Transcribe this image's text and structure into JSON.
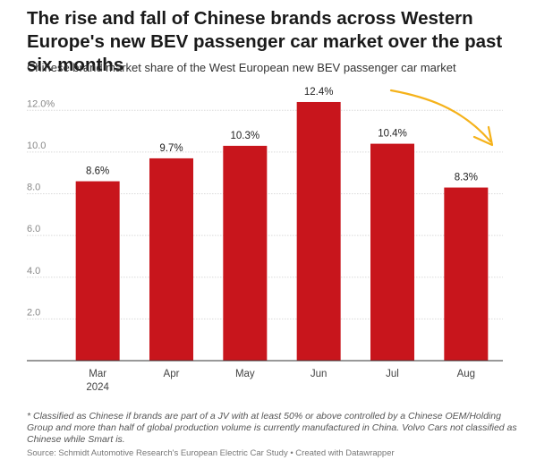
{
  "title": "The rise and fall of Chinese brands across Western Europe's new BEV passenger car market over the past six months",
  "subtitle": "Chinese brand market share of the West European new BEV passenger car market",
  "footnote": "* Classified as Chinese if brands are part of a JV with at least 50% or above controlled by a Chinese OEM/Holding Group and more than half of global production volume is currently manufactured in China. Volvo Cars not classified as Chinese while Smart is.",
  "source": "Source: Schmidt Automotive Research's European Electric Car Study • Created with Datawrapper",
  "colors": {
    "bar": "#c8151c",
    "arrow": "#f5b21a",
    "grid": "#d9d9d9"
  },
  "chart_data": {
    "type": "bar",
    "categories": [
      "Mar",
      "Apr",
      "May",
      "Jun",
      "Jul",
      "Aug"
    ],
    "category_sublabels": [
      "2024",
      "",
      "",
      "",
      "",
      ""
    ],
    "values": [
      8.6,
      9.7,
      10.3,
      12.4,
      10.4,
      8.3
    ],
    "data_labels": [
      "8.6%",
      "9.7%",
      "10.3%",
      "12.4%",
      "10.4%",
      "8.3%"
    ],
    "yticks": [
      2.0,
      4.0,
      6.0,
      8.0,
      10.0,
      12.0
    ],
    "ytick_labels": [
      "2.0",
      "4.0",
      "6.0",
      "8.0",
      "10.0",
      "12.0%"
    ],
    "ylim": [
      0,
      13
    ],
    "grid": true,
    "annotation": "hand-drawn downward arrow"
  }
}
